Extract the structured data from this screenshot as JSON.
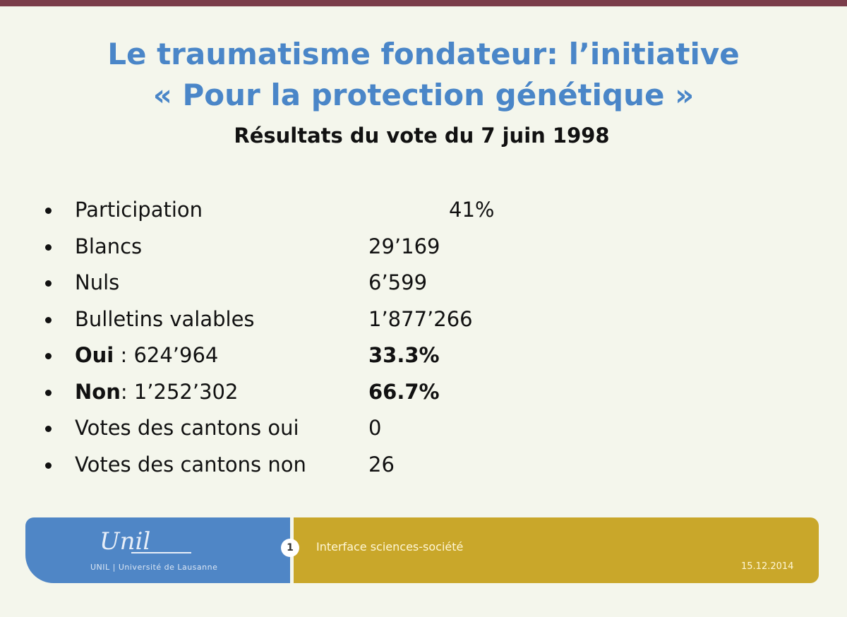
{
  "slide": {
    "title_line1": "Le traumatisme fondateur: l’initiative",
    "title_line2": "« Pour la protection génétique »",
    "subtitle": "Résultats du vote du 7 juin 1998"
  },
  "results": [
    {
      "label_bold": "",
      "label": "Participation",
      "value": "41%"
    },
    {
      "label_bold": "",
      "label": "Blancs",
      "value": "29’169"
    },
    {
      "label_bold": "",
      "label": "Nuls",
      "value": "6’599"
    },
    {
      "label_bold": "",
      "label": "Bulletins valables",
      "value": "1’877’266"
    },
    {
      "label_bold": "Oui",
      "label": " : 624’964",
      "value": "33.3%"
    },
    {
      "label_bold": "Non",
      "label": ": 1’252’302",
      "value": "66.7%"
    },
    {
      "label_bold": "",
      "label": "Votes des cantons oui",
      "value": "0"
    },
    {
      "label_bold": "",
      "label": "Votes des cantons non",
      "value": "26"
    }
  ],
  "footer": {
    "logo_script": "Unil",
    "logo_sub": "UNIL | Université de Lausanne",
    "slide_number": "1",
    "title": "Interface sciences-société",
    "date": "15.12.2014"
  },
  "colors": {
    "title": "#4a86c8",
    "top_rule": "#7a3d4a",
    "footer_blue": "#4f86c6",
    "footer_gold": "#c9a72a",
    "background": "#f4f6ec"
  }
}
